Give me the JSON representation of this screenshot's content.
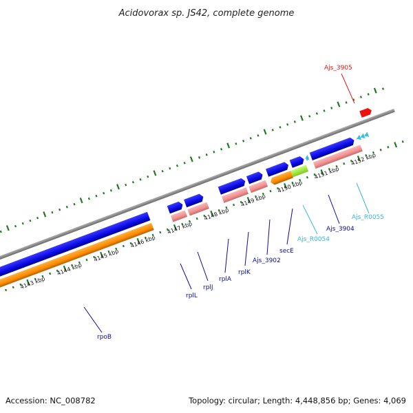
{
  "title": "Acidovorax sp. JS42, complete genome",
  "footer": {
    "accession": "Accession: NC_008782",
    "summary": "Topology: circular; Length: 4,448,856 bp; Genes: 4,069"
  },
  "colors": {
    "backbone": "#8c8c8c",
    "tick": "#1f7a1f",
    "cds_forward": "#0a0ae6",
    "cds_reverse": "#ff8c00",
    "gene_pink": "#f09090",
    "trna": "#35bde6",
    "sece_green": "#a6f03c",
    "red_feature": "#ee1111",
    "label_blue": "#0a0a9a",
    "label_cyan": "#36b6e0",
    "label_red": "#ee1111"
  },
  "scale_labels": [
    "4143 kbp",
    "4144 kbp",
    "4145 kbp",
    "4146 kbp",
    "4147 kbp",
    "4148 kbp",
    "4149 kbp",
    "4150 kbp",
    "4151 kbp",
    "4152 kbp"
  ],
  "gene_labels": [
    {
      "id": "rpoB",
      "text": "rpoB",
      "color": "#0a0a9a"
    },
    {
      "id": "rplL",
      "text": "rplL",
      "color": "#0a0a9a"
    },
    {
      "id": "rplJ",
      "text": "rplJ",
      "color": "#0a0a9a"
    },
    {
      "id": "rplA",
      "text": "rplA",
      "color": "#0a0a9a"
    },
    {
      "id": "rplK",
      "text": "rplK",
      "color": "#0a0a9a"
    },
    {
      "id": "ajs3902",
      "text": "Ajs_3902",
      "color": "#0a0a9a"
    },
    {
      "id": "secE",
      "text": "secE",
      "color": "#0a0a9a"
    },
    {
      "id": "ajsR0054",
      "text": "Ajs_R0054",
      "color": "#36b6e0"
    },
    {
      "id": "ajs3904",
      "text": "Ajs_3904",
      "color": "#0a0a9a"
    },
    {
      "id": "ajsR0055",
      "text": "Ajs_R0055",
      "color": "#36b6e0"
    },
    {
      "id": "ajs3905",
      "text": "Ajs_3905",
      "color": "#ee1111"
    }
  ]
}
